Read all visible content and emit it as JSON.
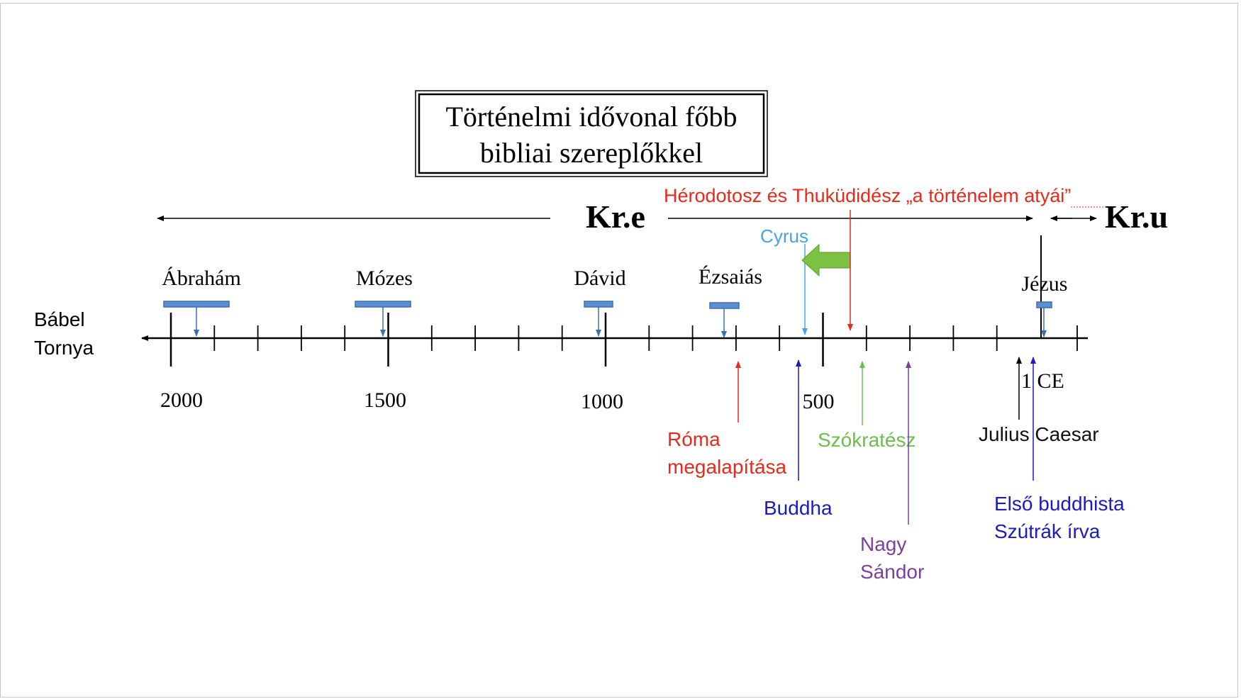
{
  "title": {
    "line1": "Történelmi idővonal főbb",
    "line2": "bibliai szereplőkkel"
  },
  "era": {
    "bce": "Kr.e",
    "ce": "Kr.u"
  },
  "start_label": {
    "line1": "Bábel",
    "line2": "Tornya"
  },
  "year_labels": [
    "2000",
    "1500",
    "1000",
    "500",
    "1 CE"
  ],
  "biblical_figures": [
    {
      "name": "Ábrahám"
    },
    {
      "name": "Mózes"
    },
    {
      "name": "Dávid"
    },
    {
      "name": "Ézsaiás"
    },
    {
      "name": "Jézus"
    }
  ],
  "events_above": [
    {
      "text": "Cyrus",
      "color": "#4aa3e0"
    },
    {
      "text": "Hérodotosz és Thuküdidész „a történelem atyái”",
      "color": "#e8291c"
    }
  ],
  "events_below": [
    {
      "line1": "Róma",
      "line2": "megalapítása",
      "color": "#e8291c"
    },
    {
      "line1": "Buddha",
      "line2": "",
      "color": "#1b1bbf"
    },
    {
      "line1": "Szókratész",
      "line2": "",
      "color": "#6abf4b"
    },
    {
      "line1": "Nagy",
      "line2": "Sándor",
      "color": "#7b3fa0"
    },
    {
      "line1": "Julius Caesar",
      "line2": "",
      "color": "#111111"
    },
    {
      "line1": "Első buddhista",
      "line2": "Szútrák írva",
      "color": "#1b1bbf"
    }
  ],
  "colors": {
    "figure_bar": "#5b8fd0",
    "figure_bar_edge": "#3d6fb0",
    "big_arrow": "#7dc142",
    "axis": "#000000"
  }
}
